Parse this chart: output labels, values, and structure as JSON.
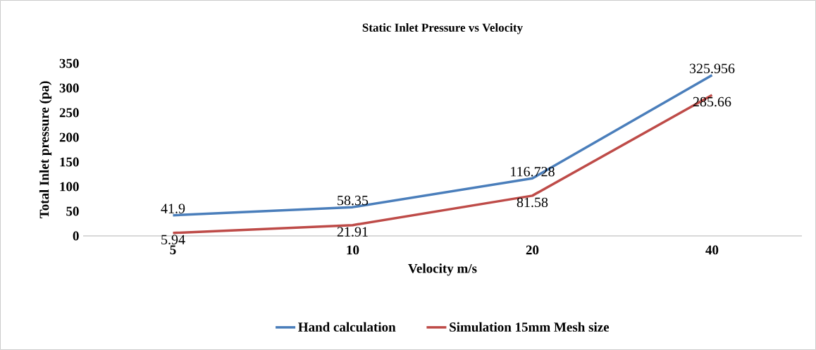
{
  "chart_data": {
    "type": "line",
    "title": "Static Inlet Pressure vs Velocity",
    "xlabel": "Velocity m/s",
    "ylabel": "Total Inlet pressure  (pa)",
    "categories": [
      "5",
      "10",
      "20",
      "40"
    ],
    "series": [
      {
        "name": "Hand calculation",
        "color": "#4a7ebb",
        "values": [
          41.9,
          58.35,
          116.728,
          325.956
        ]
      },
      {
        "name": "Simulation 15mm Mesh size",
        "color": "#be4b48",
        "values": [
          5.94,
          21.91,
          81.58,
          285.66
        ]
      }
    ],
    "ylim": [
      0,
      350
    ],
    "yticks": [
      0,
      50,
      100,
      150,
      200,
      250,
      300,
      350
    ],
    "data_labels": true,
    "legend": "bottom"
  }
}
